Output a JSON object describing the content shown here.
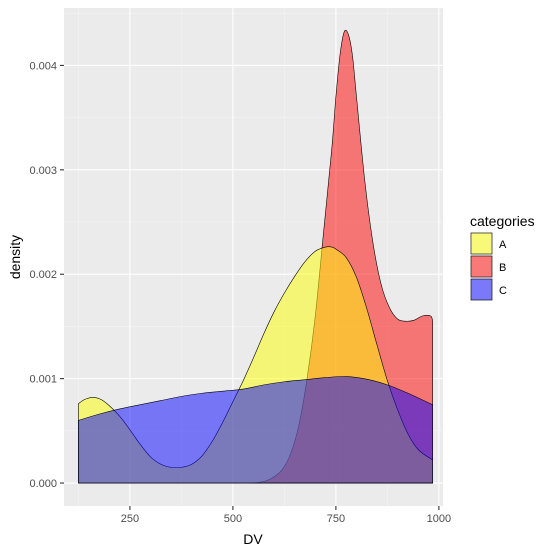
{
  "chart_data": {
    "type": "area",
    "xlabel": "DV",
    "ylabel": "density",
    "xlim": [
      90,
      1010
    ],
    "ylim": [
      -0.00022,
      0.00455
    ],
    "x_ticks": [
      250,
      500,
      750,
      1000
    ],
    "x_tick_labels": [
      "250",
      "500",
      "750",
      "1000"
    ],
    "y_ticks": [
      0,
      0.001,
      0.002,
      0.003,
      0.004
    ],
    "y_tick_labels": [
      "0.000",
      "0.001",
      "0.002",
      "0.003",
      "0.004"
    ],
    "grid": true,
    "legend": {
      "title": "categories",
      "position": "right"
    },
    "series": [
      {
        "name": "B",
        "color": "#f8766d",
        "fill": "#ff0000",
        "x": [
          540,
          560,
          580,
          600,
          620,
          640,
          660,
          680,
          700,
          720,
          740,
          750,
          760,
          770,
          780,
          790,
          800,
          820,
          840,
          860,
          880,
          900,
          920,
          940,
          960,
          980,
          985
        ],
        "y": [
          0,
          5e-06,
          2e-05,
          6e-05,
          0.00013,
          0.00028,
          0.00055,
          0.001,
          0.0016,
          0.0024,
          0.0032,
          0.0037,
          0.0041,
          0.00432,
          0.0043,
          0.0041,
          0.0037,
          0.0029,
          0.0023,
          0.0019,
          0.00168,
          0.00157,
          0.00155,
          0.00156,
          0.0016,
          0.0016,
          0.00155
        ]
      },
      {
        "name": "A",
        "color": "#ffff00",
        "fill": "#ffff00",
        "x": [
          125,
          140,
          160,
          180,
          200,
          225,
          250,
          275,
          300,
          325,
          350,
          375,
          400,
          425,
          450,
          475,
          500,
          525,
          550,
          575,
          600,
          625,
          650,
          675,
          700,
          725,
          740,
          750,
          775,
          800,
          825,
          850,
          875,
          900,
          925,
          950,
          985
        ],
        "y": [
          0.00076,
          0.0008,
          0.00082,
          0.0008,
          0.00074,
          0.00064,
          0.00051,
          0.00037,
          0.00025,
          0.00018,
          0.00015,
          0.00015,
          0.00018,
          0.00026,
          0.0004,
          0.00058,
          0.00078,
          0.00098,
          0.0012,
          0.00143,
          0.00164,
          0.00182,
          0.00198,
          0.00212,
          0.00222,
          0.00226,
          0.00226,
          0.00224,
          0.00216,
          0.00197,
          0.00167,
          0.00132,
          0.00098,
          0.0007,
          0.00047,
          0.00032,
          0.00022
        ]
      },
      {
        "name": "C",
        "color": "#0000ff",
        "fill": "#0000ff",
        "x": [
          125,
          175,
          225,
          275,
          325,
          375,
          425,
          475,
          525,
          575,
          625,
          675,
          725,
          775,
          825,
          875,
          925,
          985
        ],
        "y": [
          0.0006,
          0.00066,
          0.00071,
          0.00075,
          0.00079,
          0.00083,
          0.00086,
          0.00088,
          0.0009,
          0.00094,
          0.00097,
          0.00099,
          0.00101,
          0.00102,
          0.000995,
          0.00094,
          0.00086,
          0.00075
        ]
      }
    ]
  }
}
